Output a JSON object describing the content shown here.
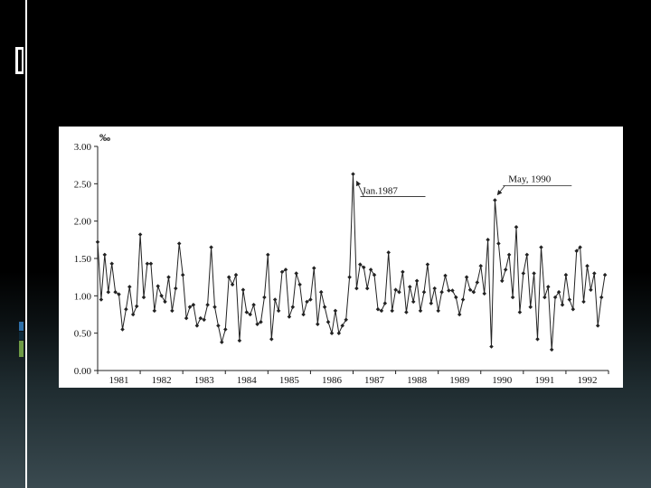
{
  "chart_data": {
    "type": "line",
    "ylabel": "‰",
    "ylim": [
      0,
      3
    ],
    "yticks": [
      "0.00",
      "0.50",
      "1.00",
      "1.50",
      "2.00",
      "2.50",
      "3.00"
    ],
    "xlim": [
      1981,
      1993
    ],
    "year_labels": [
      "1981",
      "1982",
      "1983",
      "1984",
      "1985",
      "1986",
      "1987",
      "1988",
      "1989",
      "1990",
      "1991",
      "1992"
    ],
    "grid": false,
    "legend": "none",
    "line_color": "#222222",
    "series": [
      {
        "values": [
          1.72,
          0.95,
          1.55,
          1.05,
          1.43,
          1.05,
          1.02,
          0.55,
          0.82,
          1.12,
          0.75,
          0.86,
          1.82,
          0.98,
          1.43,
          1.43,
          0.8,
          1.13,
          1.0,
          0.92,
          1.25,
          0.8,
          1.1,
          1.7,
          1.28,
          0.7,
          0.85,
          0.88,
          0.6,
          0.7,
          0.68,
          0.88,
          1.65,
          0.85,
          0.6,
          0.38,
          0.55,
          1.25,
          1.15,
          1.28,
          0.4,
          1.08,
          0.78,
          0.75,
          0.88,
          0.62,
          0.65,
          0.98,
          1.55,
          0.42,
          0.95,
          0.8,
          1.32,
          1.35,
          0.72,
          0.85,
          1.3,
          1.15,
          0.75,
          0.92,
          0.95,
          1.37,
          0.62,
          1.05,
          0.85,
          0.65,
          0.5,
          0.8,
          0.5,
          0.6,
          0.68,
          1.25,
          2.63,
          1.1,
          1.42,
          1.38,
          1.1,
          1.35,
          1.28,
          0.82,
          0.8,
          0.9,
          1.58,
          0.8,
          1.08,
          1.05,
          1.32,
          0.78,
          1.12,
          0.92,
          1.2,
          0.8,
          1.05,
          1.42,
          0.9,
          1.1,
          0.8,
          1.05,
          1.27,
          1.07,
          1.07,
          0.98,
          0.75,
          0.95,
          1.25,
          1.08,
          1.05,
          1.18,
          1.4,
          1.03,
          1.75,
          0.32,
          2.28,
          1.7,
          1.2,
          1.35,
          1.55,
          0.98,
          1.92,
          0.78,
          1.3,
          1.55,
          0.85,
          1.3,
          0.42,
          1.65,
          0.98,
          1.12,
          0.28,
          0.98,
          1.05,
          0.88,
          1.28,
          0.95,
          0.82,
          1.6,
          1.65,
          0.92,
          1.4,
          1.08,
          1.3,
          0.6,
          0.98,
          1.28
        ]
      }
    ],
    "annotations": [
      {
        "text": "Jan.1987",
        "x": 1987.0,
        "y": 2.63
      },
      {
        "text": "May, 1990",
        "x": 1990.33,
        "y": 2.28
      }
    ]
  }
}
